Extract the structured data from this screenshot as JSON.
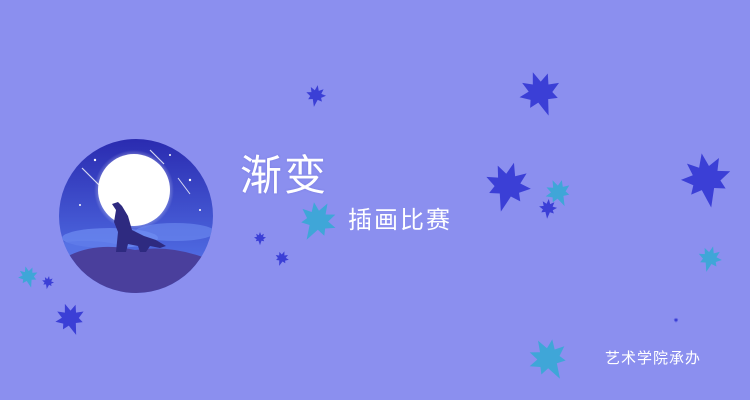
{
  "banner": {
    "title": "渐变",
    "subtitle": "插画比赛",
    "organizer": "艺术学院承办"
  },
  "emblem": {
    "icon": "wolf-howling-moon-icon",
    "colors": {
      "sky_top": "#2a2bb0",
      "sky_bottom": "#4f6fe8",
      "moon": "#ffffff",
      "hill": "#4a3f9c",
      "wolf": "#2e2a80"
    }
  },
  "decor": {
    "icon": "maple-leaf-icon",
    "colors": {
      "blue": "#3b3fd6",
      "teal": "#3fa6d8"
    }
  },
  "colors": {
    "background": "#8b8fef",
    "text": "#ffffff"
  }
}
